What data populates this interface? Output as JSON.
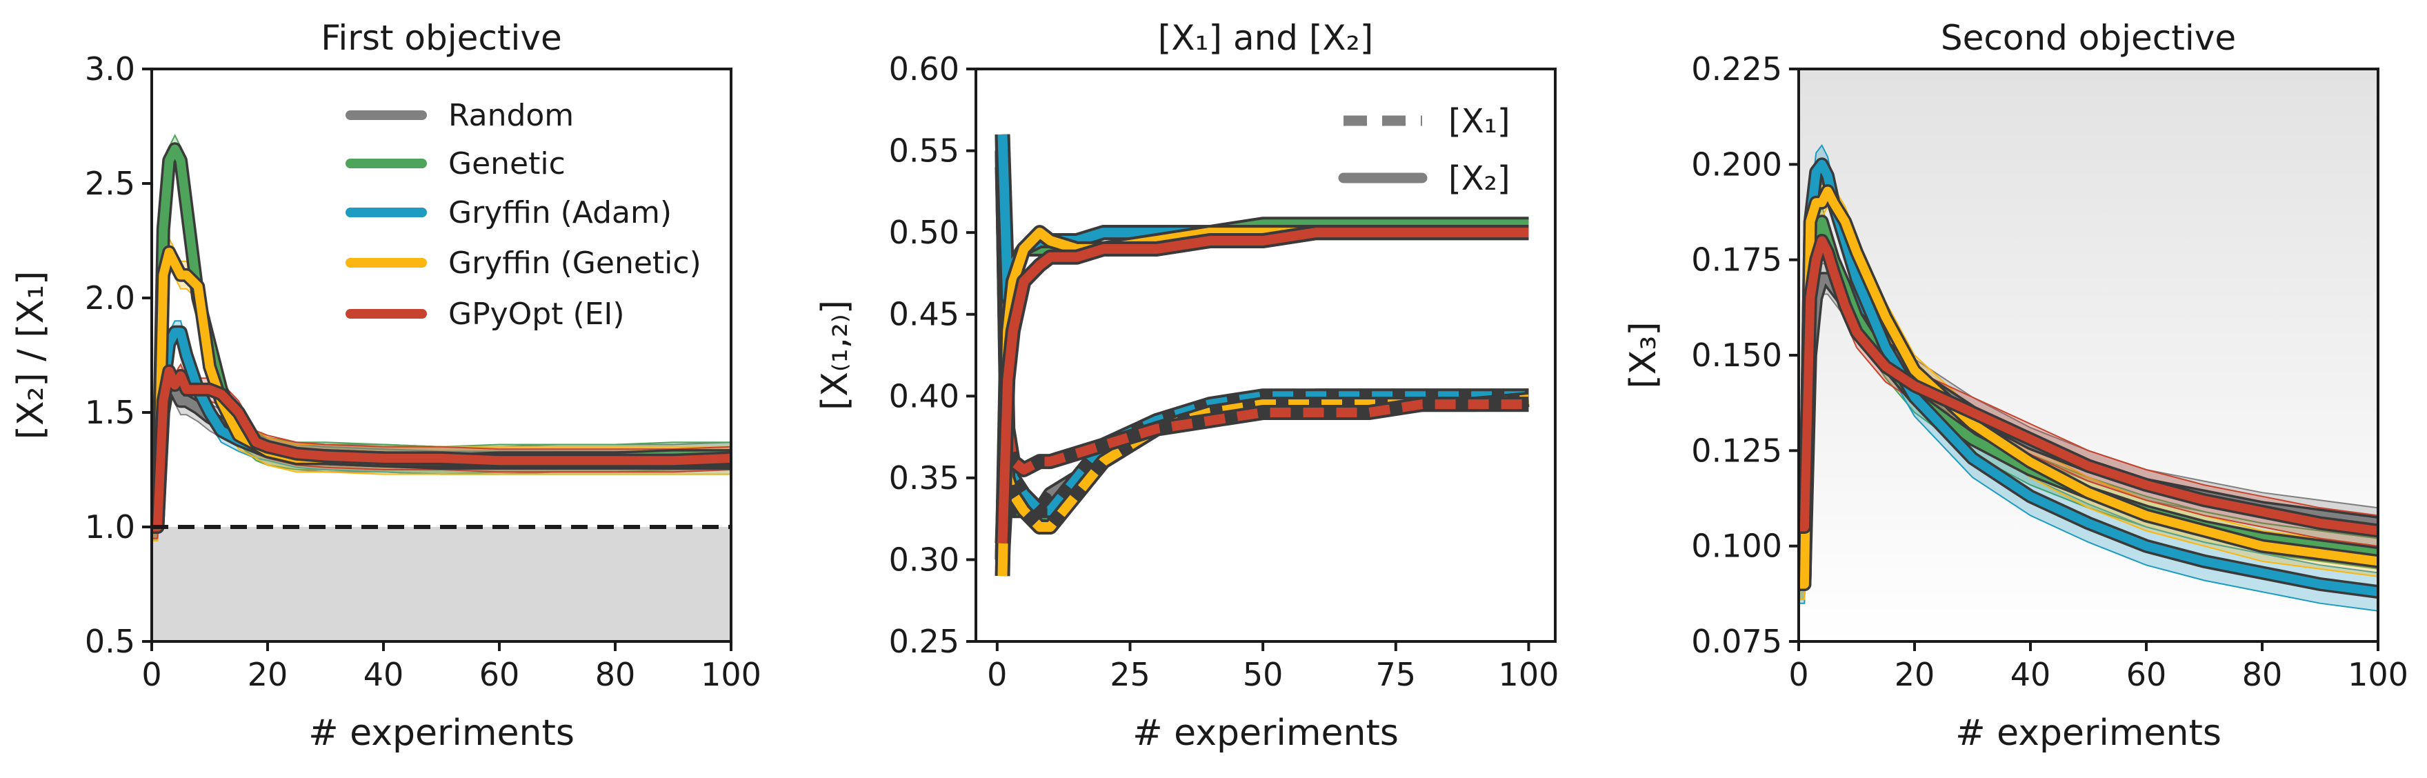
{
  "colors": {
    "Random": "#808080",
    "Genetic": "#4ea45a",
    "Gryffin (Adam)": "#1d9bc1",
    "Gryffin (Genetic)": "#fbb612",
    "GPyOpt (EI)": "#c8432f",
    "outline": "#3a3a3a",
    "threshold": "#1a1a1a"
  },
  "chart_data": [
    {
      "type": "line",
      "title": "First objective",
      "xlabel": "# experiments",
      "ylabel": "[X₂] / [X₁]",
      "xlim": [
        0,
        100
      ],
      "ylim": [
        0.5,
        3.0
      ],
      "xticks": [
        "0",
        "20",
        "40",
        "60",
        "80",
        "100"
      ],
      "yticks": [
        "0.5",
        "1.0",
        "1.5",
        "2.0",
        "2.5",
        "3.0"
      ],
      "grid": false,
      "legend": {
        "position": "top-right",
        "entries": [
          "Random",
          "Genetic",
          "Gryffin (Adam)",
          "Gryffin (Genetic)",
          "GPyOpt (EI)"
        ]
      },
      "annotations": [
        {
          "kind": "horizontal-dashed-line",
          "y": 1.0
        },
        {
          "kind": "shaded-infeasible-region",
          "y_from": 0.5,
          "y_to": 1.0
        }
      ],
      "x": [
        1,
        2,
        3,
        4,
        5,
        6,
        8,
        10,
        12,
        15,
        18,
        20,
        25,
        30,
        40,
        50,
        60,
        70,
        80,
        90,
        100
      ],
      "series": [
        {
          "name": "Random",
          "mean": [
            1.0,
            1.5,
            1.65,
            1.6,
            1.55,
            1.55,
            1.52,
            1.48,
            1.45,
            1.42,
            1.36,
            1.33,
            1.31,
            1.3,
            1.3,
            1.29,
            1.29,
            1.3,
            1.3,
            1.3,
            1.31
          ],
          "band": 0.06
        },
        {
          "name": "Genetic",
          "mean": [
            1.0,
            2.3,
            2.6,
            2.65,
            2.6,
            2.4,
            2.0,
            1.8,
            1.6,
            1.42,
            1.35,
            1.33,
            1.31,
            1.31,
            1.3,
            1.29,
            1.3,
            1.3,
            1.3,
            1.31,
            1.31
          ],
          "band": 0.06
        },
        {
          "name": "Gryffin (Adam)",
          "mean": [
            1.0,
            1.6,
            1.8,
            1.85,
            1.85,
            1.75,
            1.6,
            1.5,
            1.42,
            1.38,
            1.35,
            1.34,
            1.31,
            1.3,
            1.29,
            1.28,
            1.28,
            1.28,
            1.28,
            1.28,
            1.28
          ],
          "band": 0.05
        },
        {
          "name": "Gryffin (Genetic)",
          "mean": [
            1.0,
            2.1,
            2.2,
            2.15,
            2.1,
            2.1,
            2.05,
            1.7,
            1.55,
            1.4,
            1.36,
            1.33,
            1.3,
            1.3,
            1.29,
            1.29,
            1.29,
            1.29,
            1.29,
            1.29,
            1.29
          ],
          "band": 0.06
        },
        {
          "name": "GPyOpt (EI)",
          "mean": [
            1.0,
            1.55,
            1.68,
            1.62,
            1.66,
            1.6,
            1.6,
            1.6,
            1.58,
            1.5,
            1.37,
            1.35,
            1.32,
            1.31,
            1.3,
            1.3,
            1.29,
            1.29,
            1.29,
            1.29,
            1.3
          ],
          "band": 0.05
        }
      ]
    },
    {
      "type": "line",
      "title": "[X₁] and [X₂]",
      "xlabel": "# experiments",
      "ylabel": "[X₍₁,₂₎]",
      "xlim": [
        -4,
        105
      ],
      "ylim": [
        0.25,
        0.6
      ],
      "xticks": [
        "0",
        "25",
        "50",
        "75",
        "100"
      ],
      "xtick_values": [
        0,
        25,
        50,
        75,
        100
      ],
      "yticks": [
        "0.25",
        "0.30",
        "0.35",
        "0.40",
        "0.45",
        "0.50",
        "0.55",
        "0.60"
      ],
      "grid": false,
      "legend": {
        "position": "top-right",
        "entries": [
          "[X₁]",
          "[X₂]"
        ]
      },
      "x": [
        1,
        2,
        3,
        5,
        8,
        10,
        15,
        20,
        30,
        40,
        50,
        60,
        70,
        80,
        90,
        100
      ],
      "series": [
        {
          "name": "Random [X₁]",
          "values": [
            0.55,
            0.35,
            0.34,
            0.34,
            0.33,
            0.34,
            0.35,
            0.36,
            0.38,
            0.39,
            0.39,
            0.395,
            0.395,
            0.395,
            0.395,
            0.395
          ]
        },
        {
          "name": "Genetic [X₁]",
          "values": [
            0.55,
            0.34,
            0.33,
            0.33,
            0.32,
            0.33,
            0.345,
            0.36,
            0.38,
            0.39,
            0.395,
            0.4,
            0.4,
            0.4,
            0.4,
            0.4
          ]
        },
        {
          "name": "Gryffin (Adam) [X₁]",
          "values": [
            0.3,
            0.36,
            0.35,
            0.34,
            0.33,
            0.33,
            0.35,
            0.37,
            0.385,
            0.395,
            0.4,
            0.4,
            0.4,
            0.4,
            0.4,
            0.4
          ]
        },
        {
          "name": "Gryffin (Genetic) [X₁]",
          "values": [
            0.56,
            0.35,
            0.34,
            0.33,
            0.32,
            0.32,
            0.34,
            0.36,
            0.38,
            0.39,
            0.395,
            0.395,
            0.395,
            0.395,
            0.395,
            0.398
          ]
        },
        {
          "name": "GPyOpt (EI) [X₁]",
          "values": [
            0.54,
            0.38,
            0.36,
            0.355,
            0.36,
            0.36,
            0.365,
            0.37,
            0.38,
            0.385,
            0.39,
            0.39,
            0.39,
            0.395,
            0.395,
            0.395
          ]
        },
        {
          "name": "Random [X₂]",
          "values": [
            0.3,
            0.45,
            0.48,
            0.49,
            0.49,
            0.49,
            0.49,
            0.49,
            0.49,
            0.495,
            0.495,
            0.5,
            0.5,
            0.5,
            0.5,
            0.5
          ]
        },
        {
          "name": "Genetic [X₂]",
          "values": [
            0.3,
            0.47,
            0.48,
            0.49,
            0.49,
            0.49,
            0.495,
            0.5,
            0.5,
            0.5,
            0.505,
            0.505,
            0.505,
            0.505,
            0.505,
            0.505
          ]
        },
        {
          "name": "Gryffin (Adam) [X₂]",
          "values": [
            0.56,
            0.46,
            0.48,
            0.49,
            0.495,
            0.495,
            0.495,
            0.5,
            0.5,
            0.5,
            0.5,
            0.5,
            0.5,
            0.5,
            0.5,
            0.5
          ]
        },
        {
          "name": "Gryffin (Genetic) [X₂]",
          "values": [
            0.29,
            0.44,
            0.47,
            0.49,
            0.5,
            0.495,
            0.49,
            0.49,
            0.495,
            0.5,
            0.5,
            0.5,
            0.5,
            0.5,
            0.5,
            0.5
          ]
        },
        {
          "name": "GPyOpt (EI) [X₂]",
          "values": [
            0.31,
            0.41,
            0.44,
            0.47,
            0.48,
            0.485,
            0.485,
            0.49,
            0.49,
            0.495,
            0.495,
            0.5,
            0.5,
            0.5,
            0.5,
            0.5
          ]
        }
      ]
    },
    {
      "type": "line",
      "title": "Second objective",
      "xlabel": "# experiments",
      "ylabel": "[X₃]",
      "xlim": [
        0,
        100
      ],
      "ylim": [
        0.075,
        0.225
      ],
      "xticks": [
        "0",
        "20",
        "40",
        "60",
        "80",
        "100"
      ],
      "yticks": [
        "0.075",
        "0.100",
        "0.125",
        "0.150",
        "0.175",
        "0.200",
        "0.225"
      ],
      "grid": false,
      "background": "vertical gradient, gray at top to white at bottom",
      "x": [
        1,
        2,
        3,
        4,
        5,
        6,
        8,
        10,
        15,
        20,
        30,
        40,
        50,
        60,
        70,
        80,
        90,
        100
      ],
      "series": [
        {
          "name": "Random",
          "mean": [
            0.09,
            0.15,
            0.165,
            0.17,
            0.17,
            0.168,
            0.164,
            0.16,
            0.152,
            0.145,
            0.135,
            0.127,
            0.121,
            0.116,
            0.113,
            0.11,
            0.108,
            0.106
          ],
          "band": 0.004
        },
        {
          "name": "Genetic",
          "mean": [
            0.09,
            0.17,
            0.18,
            0.185,
            0.18,
            0.175,
            0.168,
            0.16,
            0.148,
            0.139,
            0.128,
            0.12,
            0.114,
            0.109,
            0.105,
            0.102,
            0.1,
            0.098
          ],
          "band": 0.004
        },
        {
          "name": "Gryffin (Adam)",
          "mean": [
            0.09,
            0.185,
            0.198,
            0.2,
            0.197,
            0.19,
            0.18,
            0.17,
            0.152,
            0.139,
            0.123,
            0.113,
            0.106,
            0.1,
            0.096,
            0.093,
            0.09,
            0.088
          ],
          "band": 0.005
        },
        {
          "name": "Gryffin (Genetic)",
          "mean": [
            0.09,
            0.185,
            0.19,
            0.19,
            0.193,
            0.19,
            0.185,
            0.177,
            0.16,
            0.146,
            0.132,
            0.122,
            0.114,
            0.108,
            0.104,
            0.1,
            0.098,
            0.096
          ],
          "band": 0.004
        },
        {
          "name": "GPyOpt (EI)",
          "mean": [
            0.105,
            0.165,
            0.175,
            0.18,
            0.177,
            0.172,
            0.163,
            0.156,
            0.147,
            0.142,
            0.135,
            0.128,
            0.121,
            0.116,
            0.112,
            0.109,
            0.106,
            0.104
          ],
          "band": 0.004
        }
      ]
    }
  ]
}
